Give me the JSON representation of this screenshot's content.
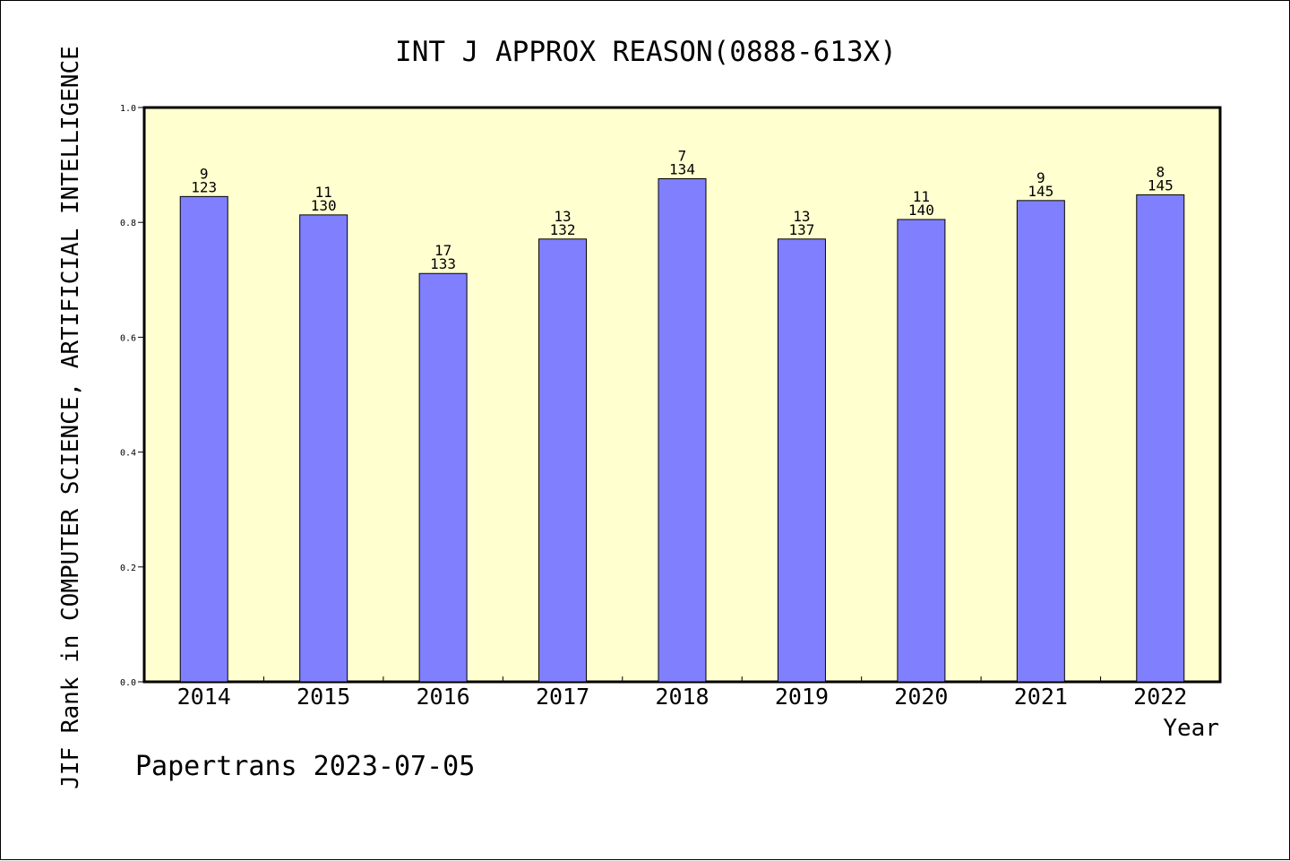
{
  "chart_data": {
    "type": "bar",
    "title": "INT J APPROX REASON(0888-613X)",
    "xlabel": "Year",
    "ylabel": "JIF Rank in COMPUTER SCIENCE, ARTIFICIAL INTELLIGENCE",
    "categories": [
      "2014",
      "2015",
      "2016",
      "2017",
      "2018",
      "2019",
      "2020",
      "2021",
      "2022"
    ],
    "values": [
      0.845,
      0.813,
      0.711,
      0.771,
      0.876,
      0.771,
      0.805,
      0.838,
      0.848
    ],
    "rank_labels": [
      "9",
      "11",
      "17",
      "13",
      "7",
      "13",
      "11",
      "9",
      "8"
    ],
    "total_labels": [
      "123",
      "130",
      "133",
      "132",
      "134",
      "137",
      "140",
      "145",
      "145"
    ],
    "ylim": [
      0,
      1.0
    ],
    "yticks": [
      "0.0",
      "0.2",
      "0.4",
      "0.6",
      "0.8",
      "1.0"
    ],
    "grid": false,
    "legend": "none",
    "colors": {
      "plot_background": "#ffffd0",
      "bar_fill": "#8080ff",
      "bar_stroke": "#000000"
    }
  },
  "footer": {
    "text": "Papertrans 2023-07-05"
  }
}
